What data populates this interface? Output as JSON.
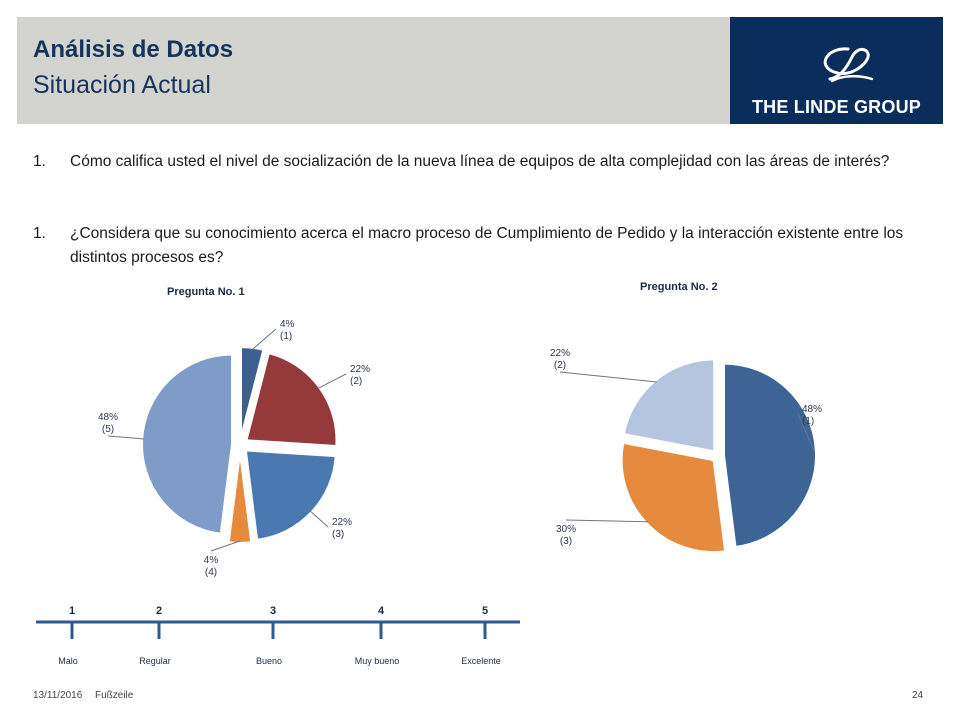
{
  "header": {
    "title": "Análisis de Datos",
    "subtitle": "Situación Actual",
    "logo_text": "THE LINDE GROUP"
  },
  "questions": [
    {
      "number": "1.",
      "text": "Cómo califica usted el nivel de socialización de la nueva línea de equipos de alta complejidad  con las áreas de interés?"
    },
    {
      "number": "1.",
      "text": "¿Considera que su conocimiento acerca el macro proceso de Cumplimiento de Pedido y la interacción existente entre los distintos procesos es?"
    }
  ],
  "chart_data": [
    {
      "type": "pie",
      "title": "Pregunta No.  1",
      "exploded": true,
      "slices": [
        {
          "percent": 4,
          "label": "4%",
          "code": "(1)",
          "color": "#3d5f91"
        },
        {
          "percent": 22,
          "label": "22%",
          "code": "(2)",
          "color": "#943a3a"
        },
        {
          "percent": 22,
          "label": "22%",
          "code": "(3)",
          "color": "#4a78b0"
        },
        {
          "percent": 4,
          "label": "4%",
          "code": "(4)",
          "color": "#e68a3e"
        },
        {
          "percent": 48,
          "label": "48%",
          "code": "(5)",
          "color": "#7f9cc9"
        }
      ]
    },
    {
      "type": "pie",
      "title": "Pregunta No. 2",
      "exploded": true,
      "slices": [
        {
          "percent": 48,
          "label": "48%",
          "code": "(1)",
          "color": "#3d6494"
        },
        {
          "percent": 30,
          "label": "30%",
          "code": "(3)",
          "color": "#e68a3e"
        },
        {
          "percent": 22,
          "label": "22%",
          "code": "(2)",
          "color": "#b5c4df"
        }
      ]
    }
  ],
  "scale": {
    "points": [
      {
        "number": "1",
        "label": "Malo"
      },
      {
        "number": "2",
        "label": "Regular"
      },
      {
        "number": "3",
        "label": "Bueno"
      },
      {
        "number": "4",
        "label": "Muy bueno"
      },
      {
        "number": "5",
        "label": "Excelente"
      }
    ],
    "color": "#2d5a94"
  },
  "footer": {
    "date": "13/11/2016",
    "label": "Fußzeile",
    "page": "24"
  }
}
